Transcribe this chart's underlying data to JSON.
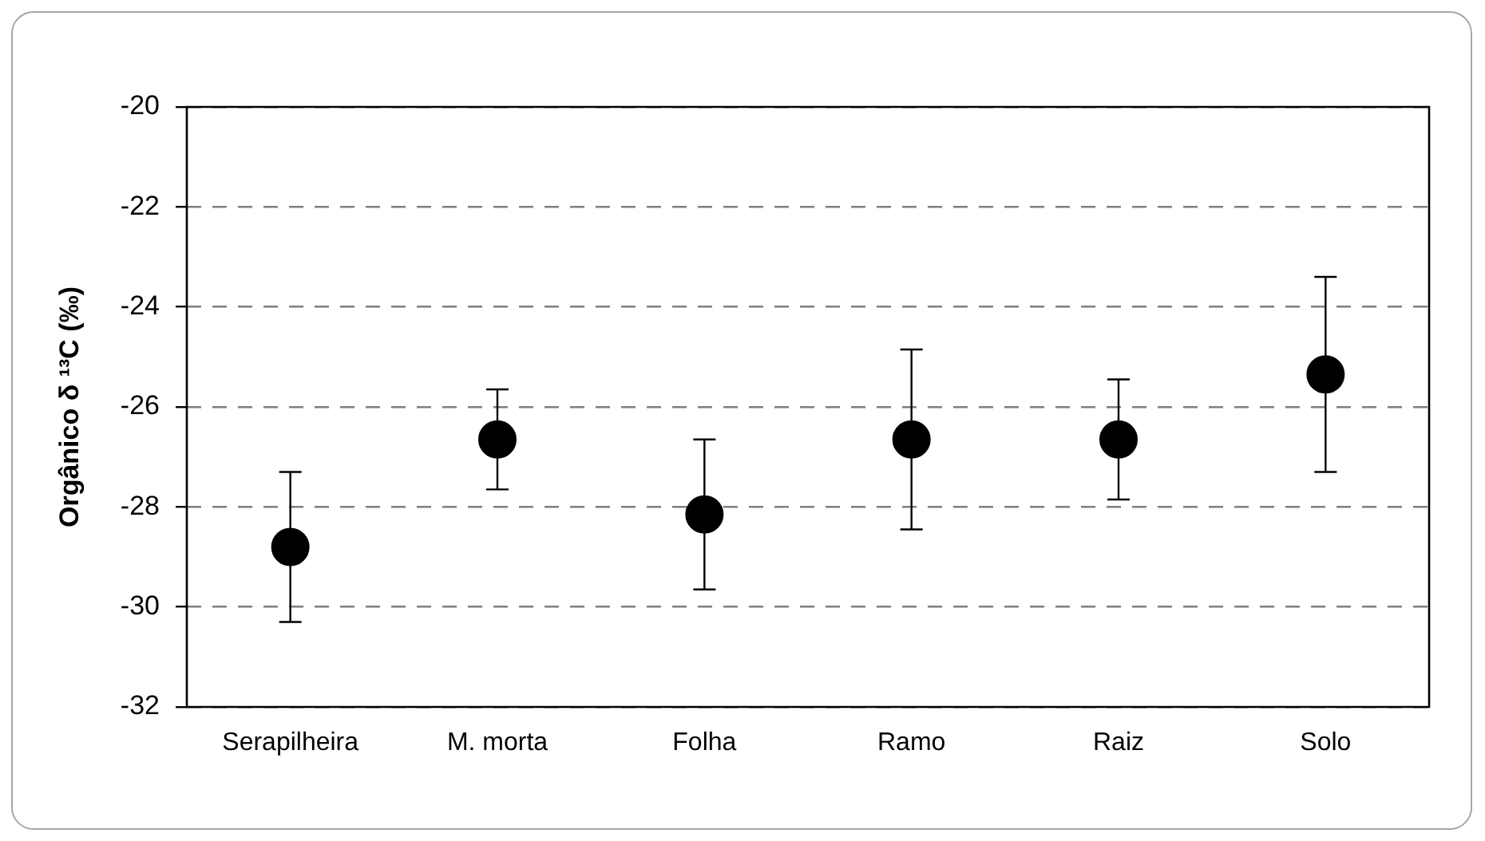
{
  "chart_data": {
    "type": "scatter",
    "ylabel": "Orgânico δ ¹³C (‰)",
    "categories": [
      "Serapilheira",
      "M. morta",
      "Folha",
      "Ramo",
      "Raiz",
      "Solo"
    ],
    "values": [
      -28.8,
      -26.65,
      -28.15,
      -26.65,
      -26.65,
      -25.35
    ],
    "errors": [
      1.5,
      1.0,
      1.5,
      1.8,
      1.2,
      1.95
    ],
    "color": "#000000",
    "ylim": [
      -32,
      -20
    ],
    "yticks": [
      -32,
      -30,
      -28,
      -26,
      -24,
      -22,
      -20
    ],
    "grid": "y",
    "marker": "circle",
    "legend": false
  }
}
